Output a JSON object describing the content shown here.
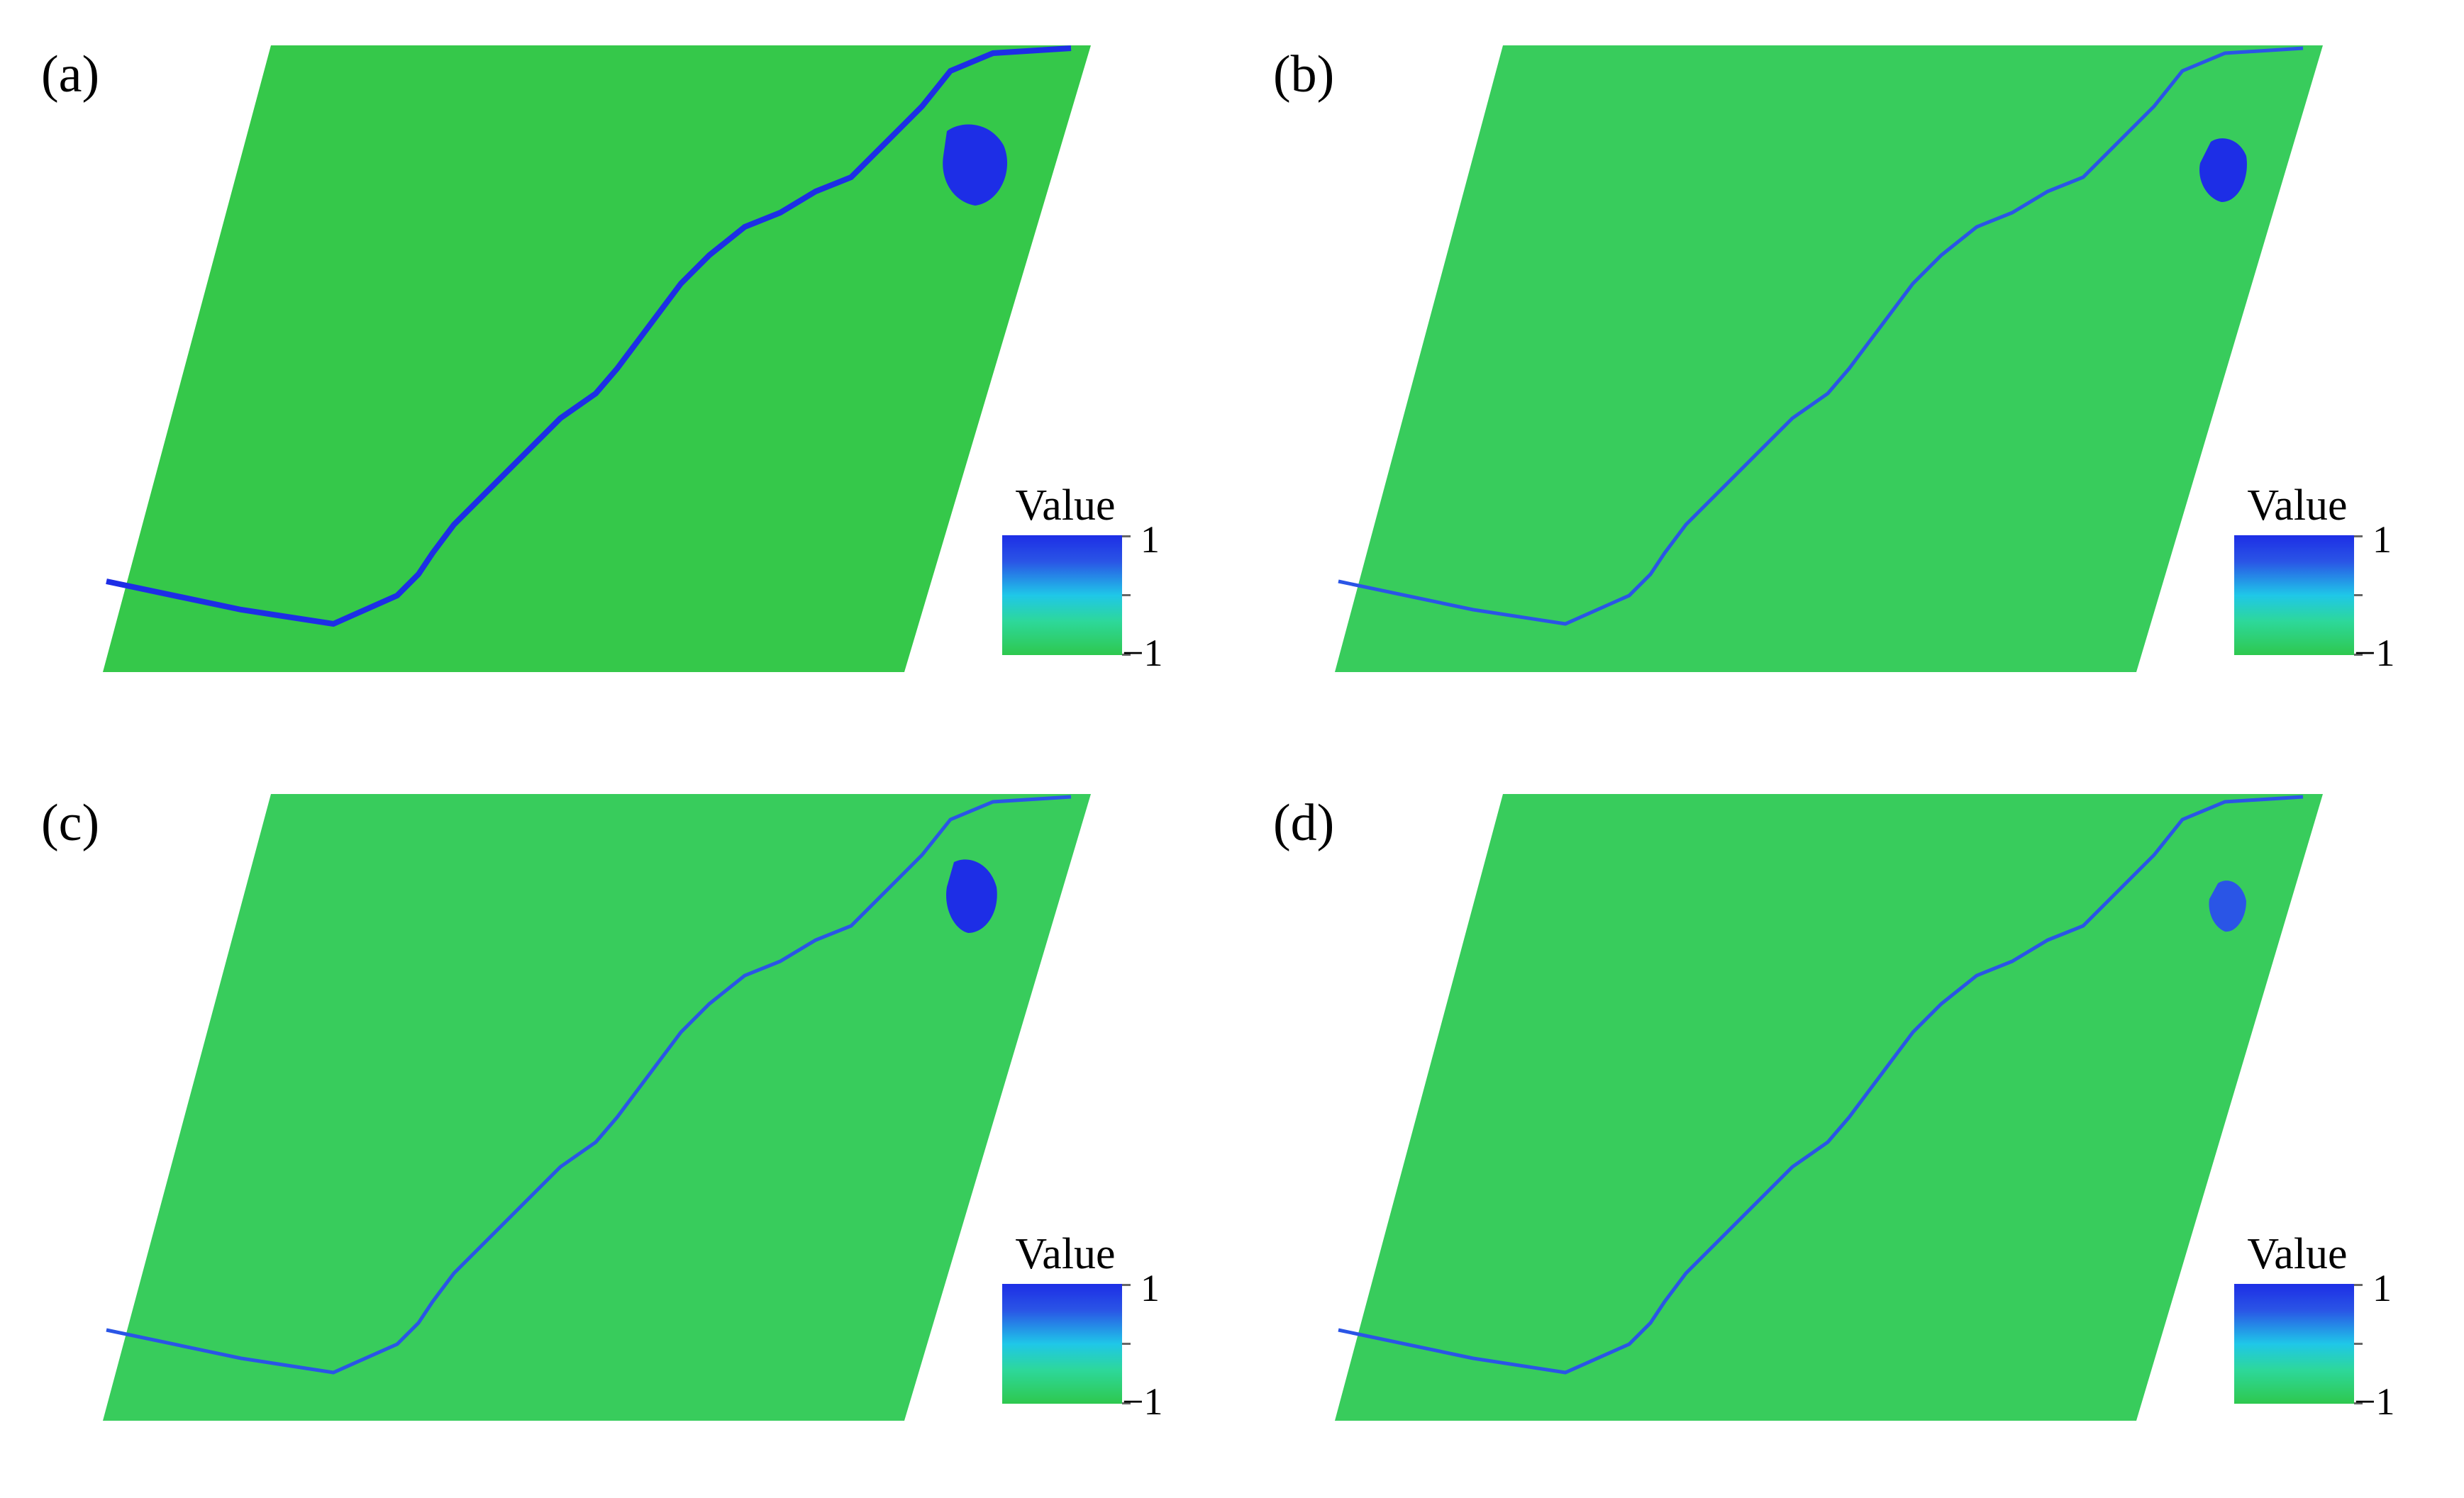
{
  "figure": {
    "panels": [
      {
        "label": "(a)",
        "legend": {
          "title": "Value",
          "max_label": "1",
          "min_label": "−1"
        }
      },
      {
        "label": "(b)",
        "legend": {
          "title": "Value",
          "max_label": "1",
          "min_label": "−1"
        }
      },
      {
        "label": "(c)",
        "legend": {
          "title": "Value",
          "max_label": "1",
          "min_label": "−1"
        }
      },
      {
        "label": "(d)",
        "legend": {
          "title": "Value",
          "max_label": "1",
          "min_label": "−1"
        }
      }
    ],
    "colors": {
      "land": "#35c84a",
      "water": "#1d2ee6",
      "mid": "#1fc7e8",
      "light_land": "#4fd39a"
    }
  }
}
